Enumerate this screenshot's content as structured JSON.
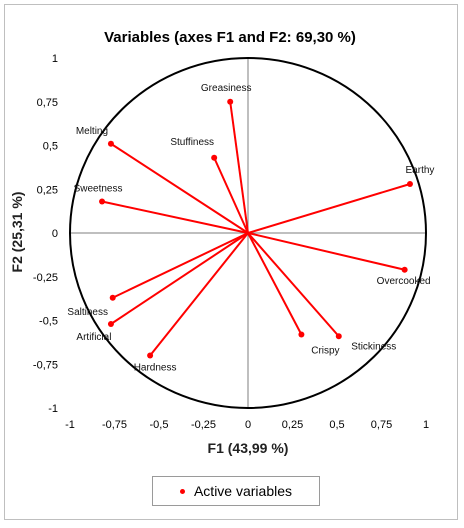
{
  "chart_data": {
    "type": "scatter",
    "title": "Variables (axes F1 and F2: 69,30 %)",
    "xlabel": "F1 (43,99 %)",
    "ylabel": "F2 (25,31 %)",
    "xlim": [
      -1,
      1
    ],
    "ylim": [
      -1,
      1
    ],
    "x_ticks": [
      "-1",
      "-0,75",
      "-0,5",
      "-0,25",
      "0",
      "0,25",
      "0,5",
      "0,75",
      "1"
    ],
    "y_ticks": [
      "-1",
      "-0,75",
      "-0,5",
      "-0,25",
      "0",
      "0,25",
      "0,5",
      "0,75",
      "1"
    ],
    "x_tick_values": [
      -1,
      -0.75,
      -0.5,
      -0.25,
      0,
      0.25,
      0.5,
      0.75,
      1
    ],
    "y_tick_values": [
      -1,
      -0.75,
      -0.5,
      -0.25,
      0,
      0.25,
      0.5,
      0.75,
      1
    ],
    "correlation_circle": true,
    "series": [
      {
        "name": "Active variables",
        "color": "#ff0000",
        "points": [
          {
            "label": "Greasiness",
            "x": -0.1,
            "y": 0.75
          },
          {
            "label": "Stuffiness",
            "x": -0.19,
            "y": 0.43
          },
          {
            "label": "Melting",
            "x": -0.77,
            "y": 0.51
          },
          {
            "label": "Sweetness",
            "x": -0.82,
            "y": 0.18
          },
          {
            "label": "Earthy",
            "x": 0.91,
            "y": 0.28
          },
          {
            "label": "Overcooked",
            "x": 0.88,
            "y": -0.21
          },
          {
            "label": "Saltiness",
            "x": -0.76,
            "y": -0.37
          },
          {
            "label": "Artificial",
            "x": -0.77,
            "y": -0.52
          },
          {
            "label": "Hardness",
            "x": -0.55,
            "y": -0.7
          },
          {
            "label": "Crispy",
            "x": 0.3,
            "y": -0.58
          },
          {
            "label": "Stickiness",
            "x": 0.51,
            "y": -0.59
          }
        ]
      }
    ]
  },
  "legend": {
    "label": "Active variables",
    "placement": "bottom"
  }
}
